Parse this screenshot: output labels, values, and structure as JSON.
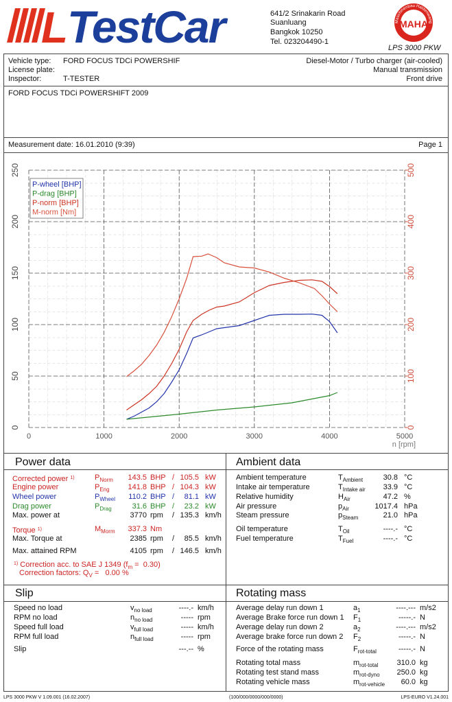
{
  "header": {
    "logo_mark": "L",
    "logo": "TestCar",
    "address": [
      "641/2 Srinakarin Road",
      "Suanluang",
      "Bangkok 10250",
      "Tel. 023204490-1"
    ],
    "badge_ring": "Maschinenbau Haldenwang",
    "badge": "MAHA",
    "model": "LPS 3000 PKW"
  },
  "vehicle": {
    "type_label": "Vehicle type:",
    "type_value": "FORD FOCUS TDCi POWERSHIF",
    "plate_label": "License plate:",
    "inspector_label": "Inspector:",
    "inspector_value": "T-TESTER",
    "engine": "Diesel-Motor / Turbo charger (air-cooled)",
    "transmission": "Manual transmission",
    "drive": "Front drive"
  },
  "description": "FORD FOCUS TDCi POWERSHIFT 2009",
  "measurement": {
    "date": "Measurement date: 16.01.2010 (9:39)",
    "page": "Page 1"
  },
  "chart_data": {
    "type": "line",
    "xlabel": "n [rpm]",
    "xlim": [
      0,
      5000
    ],
    "xticks": [
      0,
      1000,
      2000,
      3000,
      4000,
      5000
    ],
    "ylim": [
      0,
      250
    ],
    "yticks": [
      0,
      50,
      100,
      150,
      200,
      250
    ],
    "y2lim": [
      0,
      500
    ],
    "y2ticks": [
      0,
      100,
      200,
      300,
      400,
      500
    ],
    "y2color": "#d0503c",
    "grid": true,
    "legend": "upper left",
    "series": [
      {
        "name": "P-wheel [BHP]",
        "color": "#2233aa",
        "x": [
          1300,
          1400,
          1500,
          1600,
          1700,
          1800,
          1900,
          2000,
          2100,
          2185,
          2300,
          2400,
          2500,
          2600,
          2800,
          3000,
          3200,
          3400,
          3600,
          3770,
          3900,
          4000,
          4105
        ],
        "values": [
          8,
          11,
          15,
          19,
          25,
          33,
          44,
          56,
          72,
          87,
          90,
          93,
          96,
          97,
          99,
          104,
          109,
          110,
          110,
          110.2,
          109,
          103,
          92
        ]
      },
      {
        "name": "P-drag [BHP]",
        "color": "#2a8a2a",
        "x": [
          1300,
          2000,
          2500,
          3000,
          3500,
          4000,
          4105
        ],
        "values": [
          8,
          13,
          17,
          20,
          24,
          31,
          34
        ]
      },
      {
        "name": "P-norm [BHP]",
        "color": "#cc3322",
        "x": [
          1300,
          1400,
          1500,
          1600,
          1700,
          1800,
          1900,
          2000,
          2100,
          2185,
          2300,
          2400,
          2500,
          2600,
          2800,
          3000,
          3200,
          3400,
          3600,
          3770,
          3900,
          4000,
          4105
        ],
        "values": [
          17,
          22,
          27,
          33,
          40,
          50,
          62,
          76,
          93,
          104,
          110,
          114,
          117,
          118,
          122,
          131,
          138,
          141,
          143,
          143.5,
          142,
          137,
          130
        ]
      },
      {
        "name": "M-norm [Nm]",
        "color": "#d8503c",
        "axis": "y2",
        "x": [
          1300,
          1400,
          1500,
          1600,
          1700,
          1800,
          1900,
          2000,
          2100,
          2185,
          2300,
          2385,
          2500,
          2600,
          2800,
          3000,
          3200,
          3400,
          3600,
          3800,
          3900,
          4000,
          4105
        ],
        "values": [
          99,
          110,
          123,
          140,
          160,
          185,
          215,
          250,
          290,
          332,
          333,
          337.3,
          330,
          320,
          312,
          310,
          302,
          290,
          281,
          270,
          256,
          240,
          225
        ]
      }
    ]
  },
  "power": {
    "title": "Power data",
    "rows": [
      {
        "label": "Corrected power",
        "note": "1)",
        "symbol": "P",
        "sub": "Norm",
        "value": "143.5",
        "unit": "BHP",
        "sep": "/",
        "value2": "105.5",
        "unit2": "kW",
        "color": "#cc2222"
      },
      {
        "label": "Engine power",
        "symbol": "P",
        "sub": "Eng",
        "value": "141.8",
        "unit": "BHP",
        "sep": "/",
        "value2": "104.3",
        "unit2": "kW",
        "color": "#cc2222"
      },
      {
        "label": "Wheel power",
        "symbol": "P",
        "sub": "Wheel",
        "value": "110.2",
        "unit": "BHP",
        "sep": "/",
        "value2": "81.1",
        "unit2": "kW",
        "color": "#2233aa"
      },
      {
        "label": "Drag power",
        "symbol": "P",
        "sub": "Drag",
        "value": "31.6",
        "unit": "BHP",
        "sep": "/",
        "value2": "23.2",
        "unit2": "kW",
        "color": "#2a8a2a"
      },
      {
        "label": "Max. power at",
        "value": "3770",
        "unit": "rpm",
        "sep": "/",
        "value2": "135.3",
        "unit2": "km/h"
      },
      {
        "label": "Torque",
        "note": "1)",
        "symbol": "M",
        "sub": "Morm",
        "value": "337.3",
        "unit": "Nm",
        "color": "#cc2222"
      },
      {
        "label": "Max. Torque at",
        "value": "2385",
        "unit": "rpm",
        "sep": "/",
        "value2": "85.5",
        "unit2": "km/h"
      },
      {
        "label": "Max. attained RPM",
        "value": "4105",
        "unit": "rpm",
        "sep": "/",
        "value2": "146.5",
        "unit2": "km/h"
      }
    ],
    "notes": [
      {
        "mark": "1)",
        "text": "Correction acc. to SAE J 1349 (f",
        "sub": "m",
        "rest": " =  0.30)"
      },
      {
        "text": "Correction factors: Q",
        "sub": "V",
        "rest": " =   0.00 %"
      }
    ]
  },
  "ambient": {
    "title": "Ambient data",
    "rows": [
      {
        "label": "Ambient temperature",
        "symbol": "T",
        "sub": "Ambient",
        "value": "30.8",
        "unit": "°C"
      },
      {
        "label": "Intake air temperature",
        "symbol": "T",
        "sub": "Intake air",
        "value": "33.9",
        "unit": "°C"
      },
      {
        "label": "Relative humidity",
        "symbol": "H",
        "sub": "Air",
        "value": "47.2",
        "unit": "%"
      },
      {
        "label": "Air pressure",
        "symbol": "p",
        "sub": "Air",
        "value": "1017.4",
        "unit": "hPa"
      },
      {
        "label": "Steam pressure",
        "symbol": "p",
        "sub": "Steam",
        "value": "21.0",
        "unit": "hPa"
      },
      {
        "label": "Oil temperature",
        "symbol": "T",
        "sub": "Oil",
        "value": "----.-",
        "unit": "°C"
      },
      {
        "label": "Fuel temperature",
        "symbol": "T",
        "sub": "Fuel",
        "value": "----.-",
        "unit": "°C"
      }
    ]
  },
  "slip": {
    "title": "Slip",
    "rows": [
      {
        "label": "Speed no load",
        "symbol": "v",
        "sub": "no load",
        "value": "----.-",
        "unit": "km/h"
      },
      {
        "label": "RPM no load",
        "symbol": "n",
        "sub": "no load",
        "value": "-----",
        "unit": "rpm"
      },
      {
        "label": "Speed full load",
        "symbol": "v",
        "sub": "full load",
        "value": "-----",
        "unit": "km/h"
      },
      {
        "label": "RPM full load",
        "symbol": "n",
        "sub": "full load",
        "value": "-----",
        "unit": "rpm"
      },
      {
        "label": "Slip",
        "value": "---.--",
        "unit": "%"
      }
    ]
  },
  "rotating": {
    "title": "Rotating mass",
    "rows": [
      {
        "label": "Average delay run down 1",
        "symbol": "a",
        "sub": "1",
        "value": "----.---",
        "unit": "m/s2"
      },
      {
        "label": "Average Brake force run down 1",
        "symbol": "F",
        "sub": "1",
        "value": "-----.-",
        "unit": "N"
      },
      {
        "label": "Average delay run down 2",
        "symbol": "a",
        "sub": "2",
        "value": "----.---",
        "unit": "m/s2"
      },
      {
        "label": "Average brake force run down 2",
        "symbol": "F",
        "sub": "2",
        "value": "-----.-",
        "unit": "N"
      },
      {
        "label": "Force of the rotating mass",
        "symbol": "F",
        "sub": "rot-total",
        "value": "-----.-",
        "unit": "N"
      },
      {
        "label": "Rotating total mass",
        "symbol": "m",
        "sub": "rot-total",
        "value": "310.0",
        "unit": "kg"
      },
      {
        "label": "Rotating test stand mass",
        "symbol": "m",
        "sub": "rot-dyno",
        "value": "250.0",
        "unit": "kg"
      },
      {
        "label": "Rotating vehicle mass",
        "symbol": "m",
        "sub": "rot-vehicle",
        "value": "60.0",
        "unit": "kg"
      }
    ]
  },
  "footer": {
    "left": "LPS 3000 PKW V 1.09.001 (16.02.2007)",
    "center": "(100/000/0000/000/0000)",
    "right": "LPS-EURO V1.24.001"
  }
}
